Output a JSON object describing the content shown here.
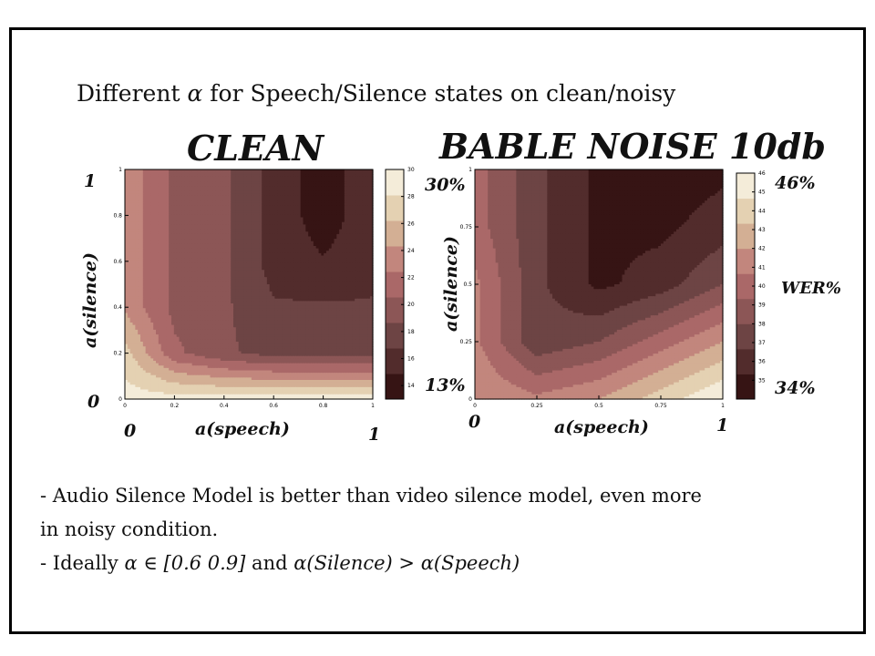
{
  "slide": {
    "title_prefix": "Different ",
    "title_symbol": "α",
    "title_suffix": " for Speech/Silence states on clean/noisy",
    "bullets": [
      "- Audio Silence Model is better than video silence model, even more",
      "in noisy condition."
    ],
    "bullet3_prefix": "- Ideally ",
    "bullet3_math1": "α ∈ [0.6 0.9]",
    "bullet3_and": " and ",
    "bullet3_math2": "α(Silence) > α(Speech)"
  },
  "chart_data": [
    {
      "type": "heatmap",
      "title": "CLEAN",
      "xlabel": "a(speech)",
      "ylabel": "a(silence)",
      "xlim": [
        0,
        1
      ],
      "ylim": [
        0,
        1
      ],
      "xticks": [
        "0",
        "0.2",
        "0.4",
        "0.6",
        "0.8",
        "1"
      ],
      "yticks": [
        "0",
        "0.2",
        "0.4",
        "0.6",
        "0.8",
        "1"
      ],
      "colorbar_ticks": [
        "14",
        "16",
        "18",
        "20",
        "22",
        "24",
        "26",
        "28",
        "30"
      ],
      "colorbar_range": [
        13,
        30
      ],
      "colorbar_max_label": "30%",
      "colorbar_min_label": "13%",
      "axis_min_x": "0",
      "axis_max_x": "1",
      "axis_min_y": "0",
      "axis_max_y": "1",
      "x": [
        0,
        0.2,
        0.4,
        0.6,
        0.8,
        1
      ],
      "y": [
        0,
        0.2,
        0.4,
        0.6,
        0.8,
        1
      ],
      "z": [
        [
          29,
          29,
          29,
          29,
          29,
          29
        ],
        [
          27,
          21,
          19,
          18,
          18,
          18
        ],
        [
          24,
          20,
          19,
          17,
          17,
          17
        ],
        [
          24,
          20,
          19,
          16,
          15,
          16
        ],
        [
          24,
          20,
          19,
          16,
          14,
          16
        ],
        [
          24,
          20,
          19,
          16,
          14,
          16
        ]
      ]
    },
    {
      "type": "heatmap",
      "title": "BABLE NOISE 10db",
      "xlabel": "a(speech)",
      "ylabel": "a(silence)",
      "xlim": [
        0,
        1
      ],
      "ylim": [
        0,
        1
      ],
      "xticks": [
        "0",
        "0.25",
        "0.5",
        "0.75",
        "1"
      ],
      "yticks": [
        "0",
        "0.25",
        "0.5",
        "0.75",
        "1"
      ],
      "colorbar_ticks": [
        "35",
        "36",
        "37",
        "38",
        "39",
        "40",
        "41",
        "42",
        "43",
        "44",
        "45",
        "46"
      ],
      "colorbar_range": [
        34,
        46
      ],
      "colorbar_max_label": "46%",
      "colorbar_min_label": "34%",
      "colorbar_unit": "WER%",
      "axis_min_x": "0",
      "axis_max_x": "1",
      "x": [
        0,
        0.25,
        0.5,
        0.75,
        1
      ],
      "y": [
        0,
        0.25,
        0.5,
        0.75,
        1
      ],
      "z": [
        [
          42,
          41,
          42,
          44,
          46
        ],
        [
          41,
          37,
          38,
          40,
          42
        ],
        [
          41,
          37,
          35,
          36,
          38
        ],
        [
          40,
          37,
          35,
          35,
          36
        ],
        [
          40,
          37,
          35,
          34.5,
          35
        ]
      ]
    }
  ]
}
